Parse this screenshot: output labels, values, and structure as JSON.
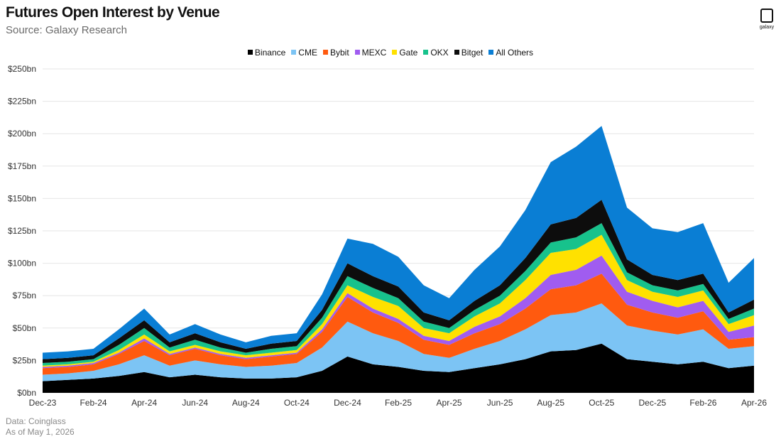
{
  "header": {
    "title": "Futures Open Interest by Venue",
    "subtitle": "Source: Galaxy Research"
  },
  "logo": {
    "text": "galaxy"
  },
  "footnote": {
    "line1": "Data: Coinglass",
    "line2": "As of May 1, 2026"
  },
  "chart_data": {
    "type": "area",
    "stacked": true,
    "title": "Futures Open Interest by Venue",
    "subtitle": "Source: Galaxy Research",
    "x": [
      "Dec-23",
      "Jan-24",
      "Feb-24",
      "Mar-24",
      "Apr-24",
      "May-24",
      "Jun-24",
      "Jul-24",
      "Aug-24",
      "Sep-24",
      "Oct-24",
      "Nov-24",
      "Dec-24",
      "Jan-25",
      "Feb-25",
      "Mar-25",
      "Apr-25",
      "May-25",
      "Jun-25",
      "Jul-25",
      "Aug-25",
      "Sep-25",
      "Oct-25",
      "Nov-25",
      "Dec-25",
      "Jan-26",
      "Feb-26",
      "Mar-26",
      "Apr-26"
    ],
    "x_tick_labels": [
      "Dec-23",
      "Feb-24",
      "Apr-24",
      "Jun-24",
      "Aug-24",
      "Oct-24",
      "Dec-24",
      "Feb-25",
      "Apr-25",
      "Jun-25",
      "Aug-25",
      "Oct-25",
      "Dec-25",
      "Feb-26",
      "Apr-26"
    ],
    "y_tick_labels": [
      "$0bn",
      "$25bn",
      "$50bn",
      "$75bn",
      "$100bn",
      "$125bn",
      "$150bn",
      "$175bn",
      "$200bn",
      "$225bn",
      "$250bn"
    ],
    "ylim": [
      0,
      250
    ],
    "grid": true,
    "legend_position": "top-center",
    "series": [
      {
        "name": "Binance",
        "color": "#000000",
        "values": [
          9,
          10,
          11,
          13,
          16,
          12,
          14,
          12,
          11,
          11,
          12,
          17,
          28,
          22,
          20,
          17,
          16,
          19,
          22,
          26,
          32,
          33,
          38,
          26,
          24,
          22,
          24,
          19,
          21
        ]
      },
      {
        "name": "CME",
        "color": "#7cc4f4",
        "values": [
          5,
          5,
          6,
          9,
          13,
          9,
          11,
          10,
          9,
          10,
          11,
          18,
          27,
          24,
          20,
          13,
          11,
          15,
          18,
          23,
          28,
          29,
          31,
          26,
          24,
          23,
          25,
          15,
          15
        ]
      },
      {
        "name": "Bybit",
        "color": "#ff5a0f",
        "values": [
          5,
          5,
          5,
          8,
          11,
          8,
          9,
          7,
          6,
          7,
          7,
          12,
          19,
          16,
          14,
          11,
          10,
          12,
          13,
          16,
          20,
          21,
          23,
          16,
          14,
          13,
          14,
          7,
          7
        ]
      },
      {
        "name": "MEXC",
        "color": "#a05cf0",
        "values": [
          1,
          1,
          1,
          1,
          2,
          1,
          1,
          1,
          1,
          1,
          1,
          2,
          3,
          3,
          3,
          3,
          3,
          5,
          6,
          8,
          11,
          12,
          14,
          10,
          9,
          8,
          8,
          6,
          9
        ]
      },
      {
        "name": "Gate",
        "color": "#ffe100",
        "values": [
          1,
          1,
          1,
          2,
          3,
          2,
          2,
          2,
          2,
          2,
          2,
          4,
          6,
          9,
          10,
          6,
          6,
          8,
          10,
          14,
          17,
          16,
          16,
          9,
          7,
          8,
          8,
          6,
          8
        ]
      },
      {
        "name": "OKX",
        "color": "#17c28c",
        "values": [
          2,
          2,
          2,
          4,
          5,
          3,
          4,
          3,
          2,
          3,
          3,
          5,
          7,
          7,
          6,
          5,
          4,
          5,
          6,
          7,
          8,
          9,
          9,
          6,
          5,
          5,
          5,
          4,
          5
        ]
      },
      {
        "name": "Bitget",
        "color": "#0d0d0d",
        "values": [
          3,
          3,
          3,
          5,
          6,
          4,
          5,
          4,
          3,
          4,
          4,
          6,
          10,
          9,
          9,
          7,
          6,
          7,
          8,
          10,
          14,
          15,
          18,
          10,
          8,
          8,
          8,
          5,
          7
        ]
      },
      {
        "name": "All Others",
        "color": "#0a7ed4",
        "values": [
          5,
          5,
          5,
          7,
          9,
          6,
          7,
          6,
          5,
          6,
          6,
          12,
          19,
          25,
          23,
          21,
          17,
          24,
          30,
          37,
          48,
          55,
          57,
          40,
          36,
          37,
          39,
          23,
          32
        ]
      }
    ]
  }
}
